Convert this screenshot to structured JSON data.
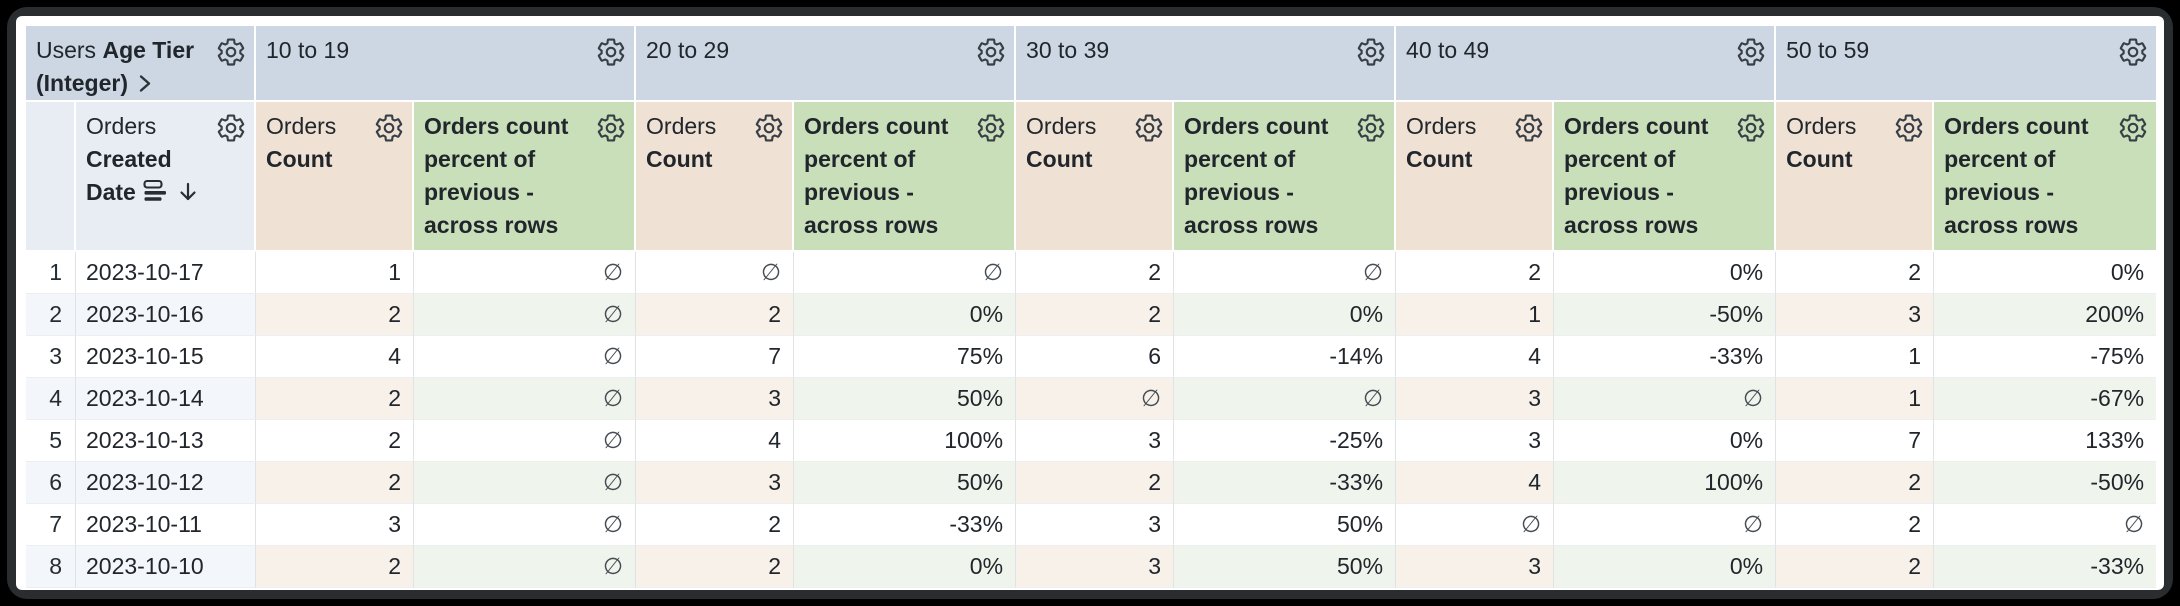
{
  "header": {
    "corner": {
      "view": "Users",
      "field": "Age Tier",
      "type": "(Integer)"
    },
    "tiers": [
      "10 to 19",
      "20 to 29",
      "30 to 39",
      "40 to 49",
      "50 to 59"
    ],
    "date_col": {
      "view": "Orders",
      "field": "Created Date"
    },
    "count_col": {
      "view": "Orders",
      "field": "Count"
    },
    "percent_col": {
      "label": "Orders count percent of previous - across rows"
    }
  },
  "rows": [
    {
      "num": "1",
      "date": "2023-10-17",
      "values": [
        "1",
        "∅",
        "∅",
        "∅",
        "2",
        "∅",
        "2",
        "0%",
        "2",
        "0%"
      ]
    },
    {
      "num": "2",
      "date": "2023-10-16",
      "values": [
        "2",
        "∅",
        "2",
        "0%",
        "2",
        "0%",
        "1",
        "-50%",
        "3",
        "200%"
      ]
    },
    {
      "num": "3",
      "date": "2023-10-15",
      "values": [
        "4",
        "∅",
        "7",
        "75%",
        "6",
        "-14%",
        "4",
        "-33%",
        "1",
        "-75%"
      ]
    },
    {
      "num": "4",
      "date": "2023-10-14",
      "values": [
        "2",
        "∅",
        "3",
        "50%",
        "∅",
        "∅",
        "3",
        "∅",
        "1",
        "-67%"
      ]
    },
    {
      "num": "5",
      "date": "2023-10-13",
      "values": [
        "2",
        "∅",
        "4",
        "100%",
        "3",
        "-25%",
        "3",
        "0%",
        "7",
        "133%"
      ]
    },
    {
      "num": "6",
      "date": "2023-10-12",
      "values": [
        "2",
        "∅",
        "3",
        "50%",
        "2",
        "-33%",
        "4",
        "100%",
        "2",
        "-50%"
      ]
    },
    {
      "num": "7",
      "date": "2023-10-11",
      "values": [
        "3",
        "∅",
        "2",
        "-33%",
        "3",
        "50%",
        "∅",
        "∅",
        "2",
        "∅"
      ]
    },
    {
      "num": "8",
      "date": "2023-10-10",
      "values": [
        "2",
        "∅",
        "2",
        "0%",
        "3",
        "50%",
        "3",
        "0%",
        "2",
        "-33%"
      ]
    }
  ],
  "null_symbol": "∅",
  "icons": {
    "gear": "gear-icon",
    "chevron_right": "chevron-right-icon",
    "fill": "fill-fields-icon",
    "sort_desc": "arrow-down-icon"
  },
  "colors": {
    "group_header_bg": "#ccd7e3",
    "dimension_header_bg": "#e8edf4",
    "count_header_bg": "#efe1d3",
    "percent_header_bg": "#c8dfba",
    "even_row_dim_bg": "#f3f6fa",
    "even_row_count_bg": "#f8f1ea",
    "even_row_percent_bg": "#eff5ed",
    "text": "#21262c",
    "frame": "#292d30"
  }
}
